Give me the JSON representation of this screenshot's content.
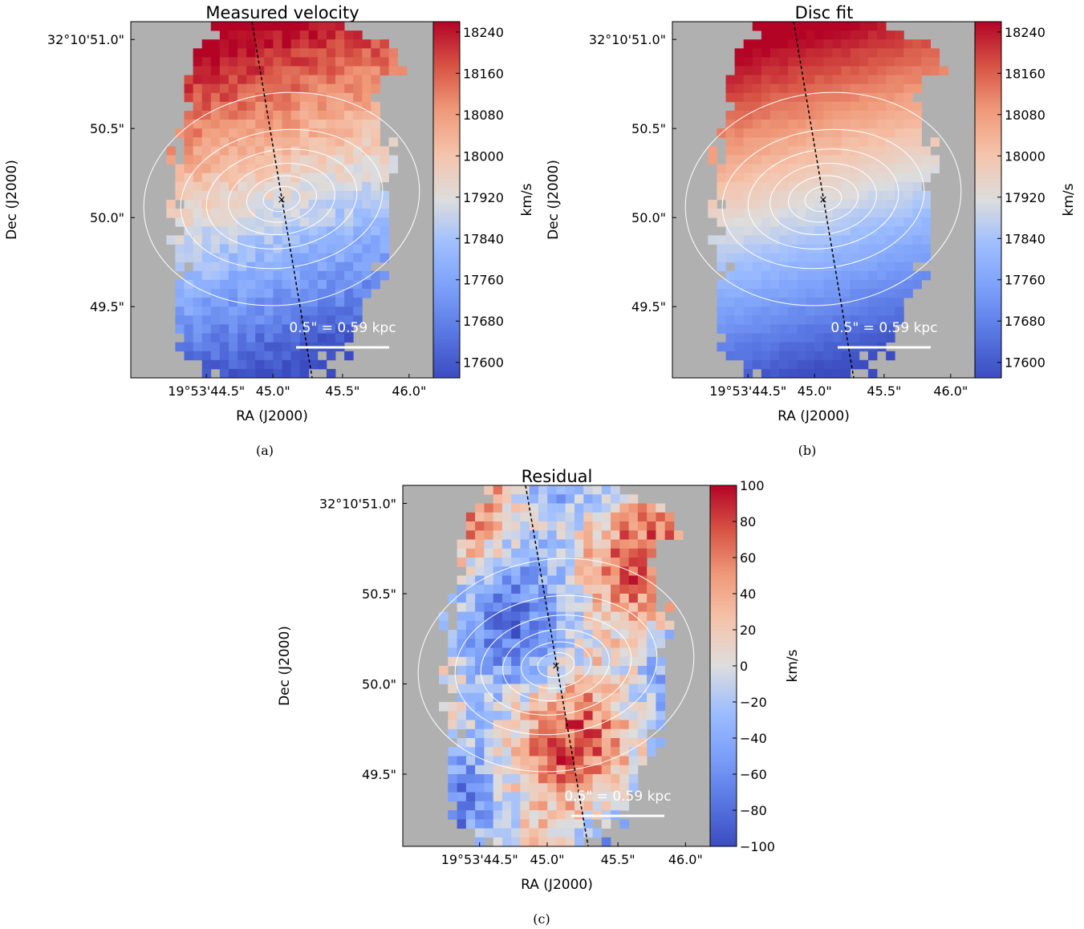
{
  "chart_data": [
    {
      "type": "heatmap",
      "title": "Measured velocity",
      "caption": "(a)",
      "xlabel": "RA (J2000)",
      "ylabel": "Dec (J2000)",
      "x_ticks": [
        "19°53'44.5\"",
        "45.0\"",
        "45.5\"",
        "46.0\""
      ],
      "y_ticks": [
        "32°10'51.0\"",
        "50.5\"",
        "50.0\"",
        "49.5\""
      ],
      "colorbar": {
        "label": "km/s",
        "ticks": [
          "18240",
          "18160",
          "18080",
          "18000",
          "17920",
          "17840",
          "17760",
          "17680",
          "17600"
        ],
        "min": 17570,
        "max": 18260,
        "colormap": "coolwarm"
      },
      "scale_bar_label": "0.5\" = 0.59 kpc",
      "mode": "velocity"
    },
    {
      "type": "heatmap",
      "title": "Disc fit",
      "caption": "(b)",
      "xlabel": "RA (J2000)",
      "ylabel": "Dec (J2000)",
      "x_ticks": [
        "19°53'44.5\"",
        "45.0\"",
        "45.5\"",
        "46.0\""
      ],
      "y_ticks": [
        "32°10'51.0\"",
        "50.5\"",
        "50.0\"",
        "49.5\""
      ],
      "colorbar": {
        "label": "km/s",
        "ticks": [
          "18240",
          "18160",
          "18080",
          "18000",
          "17920",
          "17840",
          "17760",
          "17680",
          "17600"
        ],
        "min": 17570,
        "max": 18260,
        "colormap": "coolwarm"
      },
      "scale_bar_label": "0.5\" = 0.59 kpc",
      "mode": "model"
    },
    {
      "type": "heatmap",
      "title": "Residual",
      "caption": "(c)",
      "xlabel": "RA (J2000)",
      "ylabel": "Dec (J2000)",
      "x_ticks": [
        "19°53'44.5\"",
        "45.0\"",
        "45.5\"",
        "46.0\""
      ],
      "y_ticks": [
        "32°10'51.0\"",
        "50.5\"",
        "50.0\"",
        "49.5\""
      ],
      "colorbar": {
        "label": "km/s",
        "ticks": [
          "100",
          "80",
          "60",
          "40",
          "20",
          "0",
          "−20",
          "−40",
          "−60",
          "−80",
          "−100"
        ],
        "min": -100,
        "max": 100,
        "colormap": "coolwarm"
      },
      "scale_bar_label": "0.5\" = 0.59 kpc",
      "mode": "residual"
    }
  ],
  "colors": {
    "background": "#b0b0b0",
    "contour": "#ffffff",
    "coolwarm_low": "#3b4cc0",
    "coolwarm_mid": "#dddddd",
    "coolwarm_high": "#b40426"
  }
}
